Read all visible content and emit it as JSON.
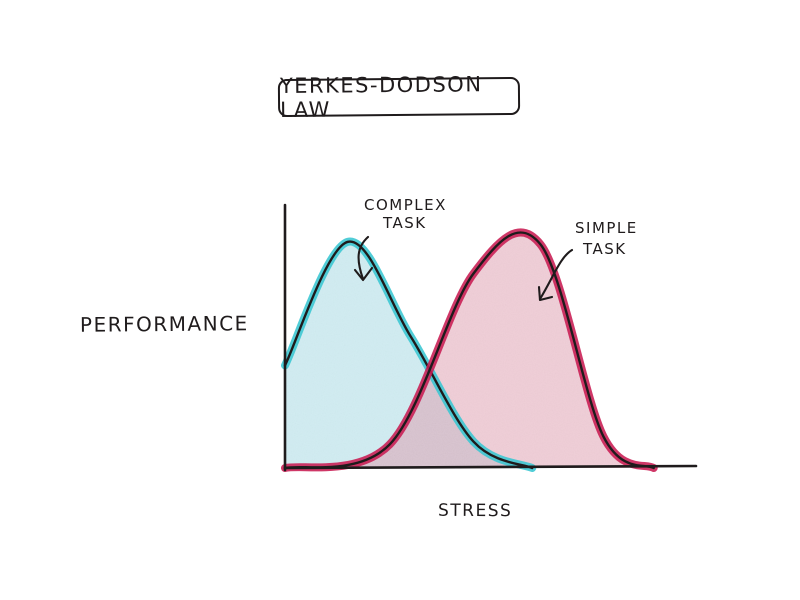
{
  "chart_data": {
    "type": "area",
    "title": "YERKES-DODSON LAW",
    "xlabel": "STRESS",
    "ylabel": "PERFORMANCE",
    "x_ticks": [],
    "y_ticks": [],
    "grid": false,
    "legend": "none",
    "x_range": [
      0,
      10
    ],
    "y_range": [
      0,
      1
    ],
    "series": [
      {
        "name": "COMPLEX TASK",
        "color": "#39c6d1",
        "fill_color": "#9ed7e2",
        "points": [
          {
            "x": 0,
            "y": 0.39
          },
          {
            "x": 1.5,
            "y": 0.86
          },
          {
            "x": 3.0,
            "y": 0.5
          },
          {
            "x": 4.5,
            "y": 0.1
          },
          {
            "x": 5.9,
            "y": 0.0
          }
        ]
      },
      {
        "name": "SIMPLE TASK",
        "color": "#c81b52",
        "fill_color": "#e2a0b2",
        "points": [
          {
            "x": 0,
            "y": 0.0
          },
          {
            "x": 2.5,
            "y": 0.09
          },
          {
            "x": 4.5,
            "y": 0.74
          },
          {
            "x": 6.1,
            "y": 0.85
          },
          {
            "x": 7.6,
            "y": 0.12
          },
          {
            "x": 8.8,
            "y": 0.0
          }
        ]
      }
    ],
    "annotations": [
      {
        "lines": [
          "COMPLEX",
          "TASK"
        ],
        "target_series": "COMPLEX TASK"
      },
      {
        "lines": [
          "SIMPLE",
          "TASK"
        ],
        "target_series": "SIMPLE TASK"
      }
    ]
  }
}
